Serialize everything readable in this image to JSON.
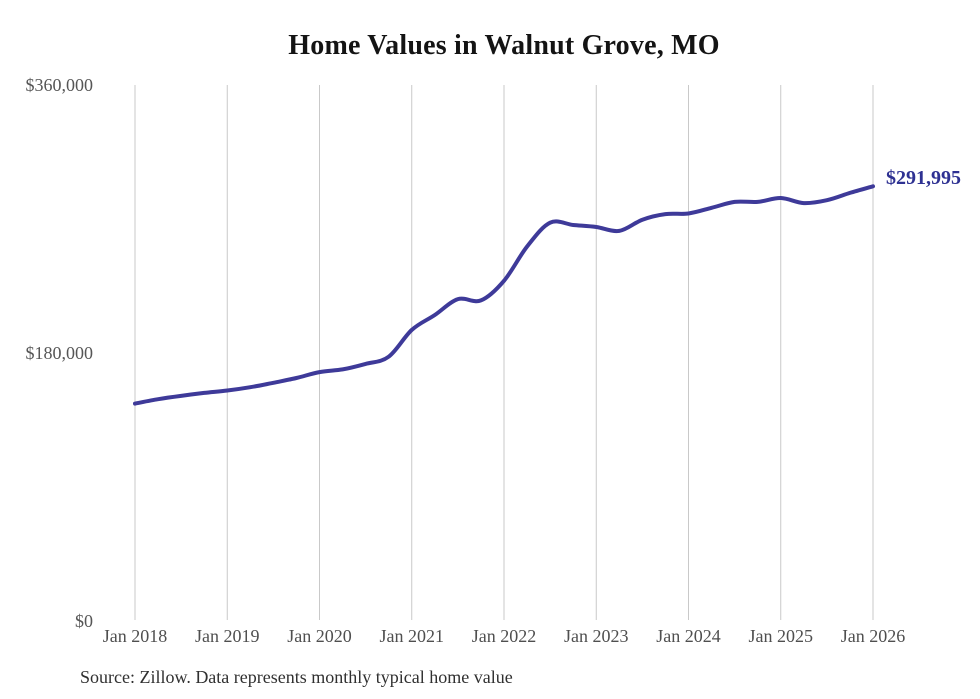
{
  "title": "Home Values in Walnut Grove, MO",
  "end_label": "$291,995",
  "source": "Source: Zillow. Data represents monthly typical home value",
  "colors": {
    "line": "#3e3a99",
    "end_label": "#2e3192",
    "grid": "#c9c9c9",
    "title_text": "#141414",
    "axis_text": "#545454",
    "source_text": "#303030"
  },
  "chart_data": {
    "type": "line",
    "title": "Home Values in Walnut Grove, MO",
    "xlabel": "",
    "ylabel": "",
    "ylim": [
      0,
      360000
    ],
    "grid": "vertical-only",
    "legend": "none",
    "x_range_months": [
      "2018-01",
      "2026-01"
    ],
    "x_tick_labels": [
      "Jan 2018",
      "Jan 2019",
      "Jan 2020",
      "Jan 2021",
      "Jan 2022",
      "Jan 2023",
      "Jan 2024",
      "Jan 2025",
      "Jan 2026"
    ],
    "y_ticks": [
      {
        "label": "$0",
        "value": 0
      },
      {
        "label": "$180,000",
        "value": 180000
      },
      {
        "label": "$360,000",
        "value": 360000
      }
    ],
    "end_annotation": {
      "text": "$291,995",
      "value": 291995
    },
    "series": [
      {
        "name": "Typical home value",
        "points": [
          {
            "date": "2018-01",
            "value": 146000
          },
          {
            "date": "2018-04",
            "value": 149000
          },
          {
            "date": "2018-07",
            "value": 151200
          },
          {
            "date": "2018-10",
            "value": 153200
          },
          {
            "date": "2019-01",
            "value": 154800
          },
          {
            "date": "2019-04",
            "value": 157000
          },
          {
            "date": "2019-07",
            "value": 160000
          },
          {
            "date": "2019-10",
            "value": 163200
          },
          {
            "date": "2020-01",
            "value": 167200
          },
          {
            "date": "2020-04",
            "value": 169000
          },
          {
            "date": "2020-07",
            "value": 172700
          },
          {
            "date": "2020-10",
            "value": 177500
          },
          {
            "date": "2021-01",
            "value": 195500
          },
          {
            "date": "2021-04",
            "value": 205500
          },
          {
            "date": "2021-07",
            "value": 216200
          },
          {
            "date": "2021-10",
            "value": 215300
          },
          {
            "date": "2022-01",
            "value": 228500
          },
          {
            "date": "2022-04",
            "value": 251500
          },
          {
            "date": "2022-07",
            "value": 267500
          },
          {
            "date": "2022-10",
            "value": 266000
          },
          {
            "date": "2023-01",
            "value": 264600
          },
          {
            "date": "2023-04",
            "value": 262000
          },
          {
            "date": "2023-07",
            "value": 269500
          },
          {
            "date": "2023-10",
            "value": 273300
          },
          {
            "date": "2024-01",
            "value": 273700
          },
          {
            "date": "2024-04",
            "value": 277500
          },
          {
            "date": "2024-07",
            "value": 281500
          },
          {
            "date": "2024-10",
            "value": 281500
          },
          {
            "date": "2025-01",
            "value": 284100
          },
          {
            "date": "2025-04",
            "value": 280700
          },
          {
            "date": "2025-07",
            "value": 282600
          },
          {
            "date": "2025-10",
            "value": 287500
          },
          {
            "date": "2026-01",
            "value": 291995
          }
        ]
      }
    ]
  }
}
